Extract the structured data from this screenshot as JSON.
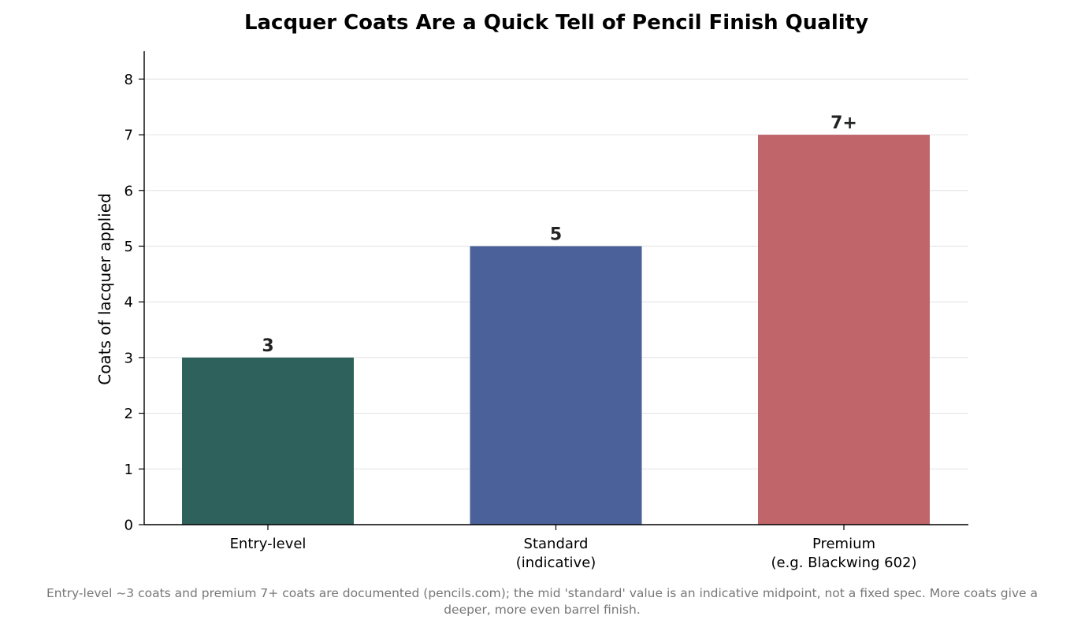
{
  "chart_data": {
    "type": "bar",
    "title": "Lacquer Coats Are a Quick Tell of Pencil Finish Quality",
    "xlabel": "",
    "ylabel": "Coats of lacquer applied",
    "categories": [
      [
        "Entry-level"
      ],
      [
        "Standard",
        "(indicative)"
      ],
      [
        "Premium",
        "(e.g. Blackwing 602)"
      ]
    ],
    "values": [
      3,
      5,
      7
    ],
    "value_labels": [
      "3",
      "5",
      "7+"
    ],
    "colors": [
      "#2e605c",
      "#4a6299",
      "#c0666b"
    ],
    "ylim": [
      0,
      8.5
    ],
    "yticks": [
      0,
      1,
      2,
      3,
      4,
      5,
      6,
      7,
      8
    ],
    "grid": "horizontal",
    "legend": "none",
    "footnote_lines": [
      "Entry-level ~3 coats and premium 7+ coats are documented (pencils.com); the mid 'standard' value is an indicative midpoint, not a fixed spec. More coats give a",
      "deeper, more even barrel finish."
    ]
  }
}
